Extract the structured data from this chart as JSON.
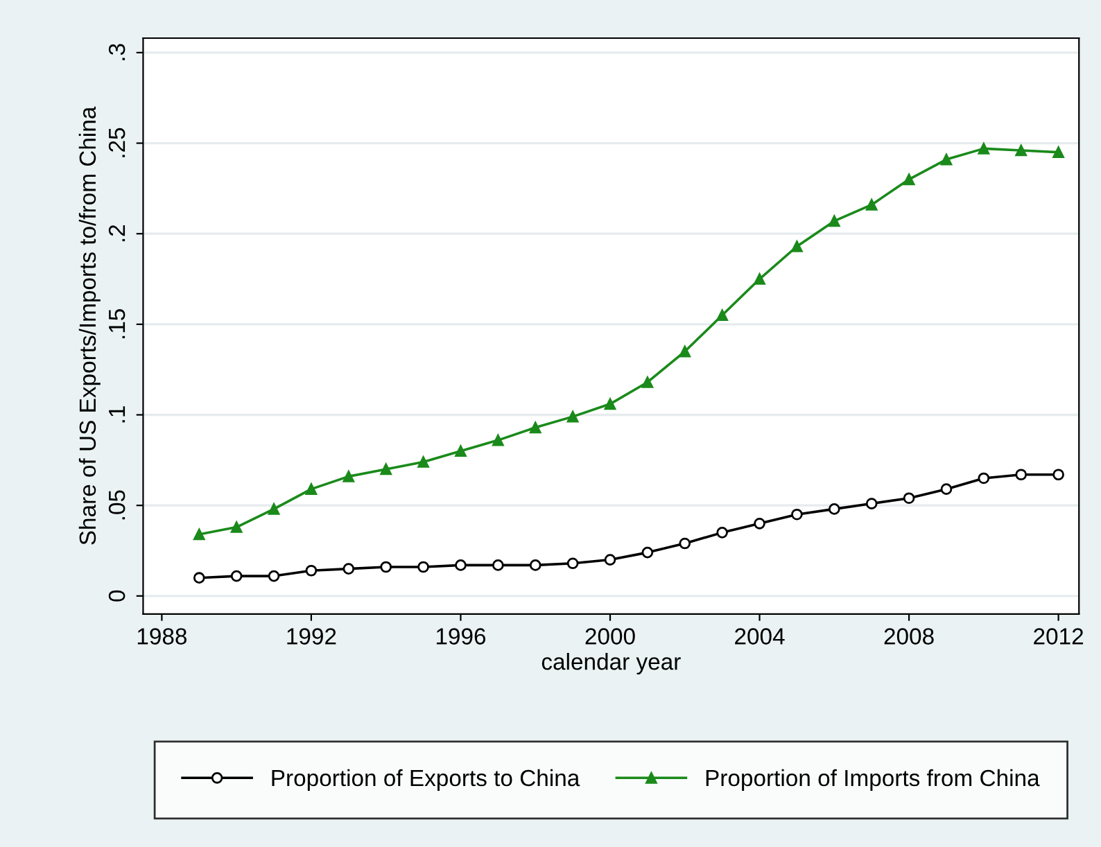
{
  "chart_data": {
    "type": "line",
    "xlabel": "calendar year",
    "ylabel": "Share of US Exports/Imports to/from China",
    "x": [
      1989,
      1990,
      1991,
      1992,
      1993,
      1994,
      1995,
      1996,
      1997,
      1998,
      1999,
      2000,
      2001,
      2002,
      2003,
      2004,
      2005,
      2006,
      2007,
      2008,
      2009,
      2010,
      2011,
      2012
    ],
    "series": [
      {
        "name": "Proportion of Exports to China",
        "color": "#000000",
        "marker": "circle",
        "values": [
          0.01,
          0.011,
          0.011,
          0.014,
          0.015,
          0.016,
          0.016,
          0.017,
          0.017,
          0.017,
          0.018,
          0.02,
          0.024,
          0.029,
          0.035,
          0.04,
          0.045,
          0.048,
          0.051,
          0.054,
          0.059,
          0.065,
          0.067,
          0.067
        ]
      },
      {
        "name": "Proportion of Imports from China",
        "color": "#1a8a1a",
        "marker": "triangle",
        "values": [
          0.034,
          0.038,
          0.048,
          0.059,
          0.066,
          0.07,
          0.074,
          0.08,
          0.086,
          0.093,
          0.099,
          0.106,
          0.118,
          0.135,
          0.155,
          0.175,
          0.193,
          0.207,
          0.216,
          0.23,
          0.241,
          0.247,
          0.246,
          0.245
        ]
      }
    ],
    "xlim": [
      1987.5,
      2012.55
    ],
    "xticks": [
      1988,
      1992,
      1996,
      2000,
      2004,
      2008,
      2012
    ],
    "ylim": [
      -0.01,
      0.308
    ],
    "yticks": [
      {
        "value": 0,
        "label": "0"
      },
      {
        "value": 0.05,
        "label": ".05"
      },
      {
        "value": 0.1,
        "label": ".1"
      },
      {
        "value": 0.15,
        "label": ".15"
      },
      {
        "value": 0.2,
        "label": ".2"
      },
      {
        "value": 0.25,
        "label": ".25"
      },
      {
        "value": 0.3,
        "label": ".3"
      }
    ],
    "grid": "y",
    "legend": "bottom",
    "line_style": "solid"
  }
}
